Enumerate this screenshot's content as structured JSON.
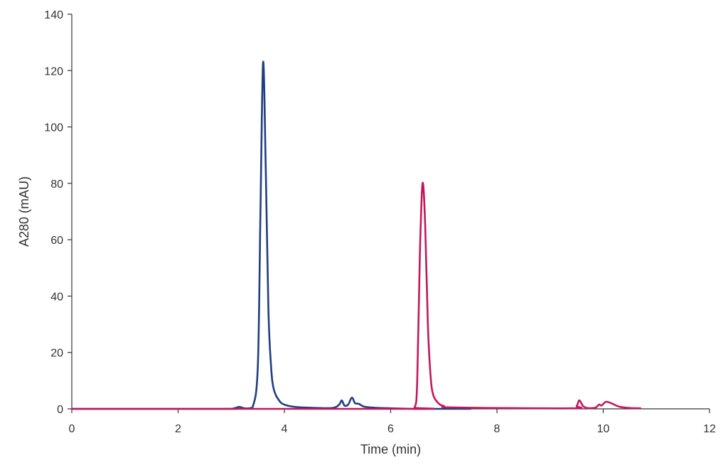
{
  "chart_data": {
    "type": "line",
    "title": "",
    "xlabel": "Time (min)",
    "ylabel": "A280 (mAU)",
    "xlim": [
      0,
      12
    ],
    "ylim": [
      0,
      140
    ],
    "x_ticks": [
      0,
      2,
      4,
      6,
      8,
      10,
      12
    ],
    "y_ticks": [
      0,
      20,
      40,
      60,
      80,
      100,
      120,
      140
    ],
    "grid": false,
    "legend": "none",
    "series": [
      {
        "color": "#1f3f7f",
        "x": [
          0,
          2.8,
          3.05,
          3.15,
          3.25,
          3.4,
          3.5,
          3.55,
          3.6,
          3.65,
          3.7,
          3.75,
          3.8,
          3.9,
          4.0,
          4.2,
          4.5,
          4.9,
          5.03,
          5.08,
          5.13,
          5.2,
          5.27,
          5.33,
          5.4,
          5.5,
          5.7,
          6.0,
          6.5,
          7.0,
          7.5
        ],
        "y": [
          0,
          0,
          0.2,
          0.7,
          0.2,
          0.5,
          15,
          70,
          123,
          85,
          35,
          15,
          7,
          3,
          1.5,
          0.7,
          0.4,
          0.3,
          1.5,
          3,
          1.2,
          1.5,
          4,
          2,
          1.8,
          0.8,
          0.4,
          0.2,
          0,
          0,
          0
        ]
      },
      {
        "color": "#c2185b",
        "x": [
          0,
          6.3,
          6.45,
          6.5,
          6.55,
          6.6,
          6.65,
          6.7,
          6.75,
          6.8,
          6.9,
          7.0,
          7.2,
          9.4,
          9.5,
          9.55,
          9.62,
          9.7,
          9.85,
          9.92,
          9.97,
          10.05,
          10.15,
          10.3,
          10.5,
          10.7
        ],
        "y": [
          0,
          0,
          0.5,
          10,
          55,
          80,
          65,
          30,
          12,
          5,
          2,
          1,
          0.5,
          0.2,
          1,
          3,
          1,
          0.3,
          0.4,
          1.5,
          1.2,
          2.5,
          2,
          0.8,
          0.3,
          0.2
        ]
      }
    ]
  }
}
